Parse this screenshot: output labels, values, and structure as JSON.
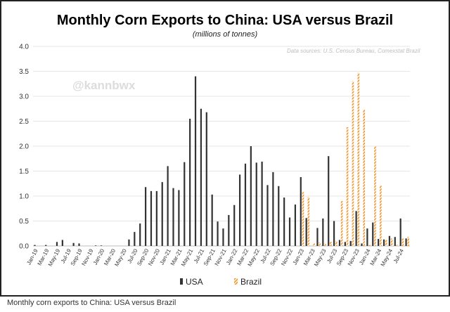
{
  "header": {
    "title": "Monthly Corn Exports to China: USA versus Brazil",
    "subtitle": "(millions of tonnes)",
    "source": "Data sources: U.S. Census Bureau, Comexstat Brazil",
    "watermark": "@kannbwx"
  },
  "caption": "Monthly corn exports to China: USA versus Brazil",
  "colors": {
    "usa": "#333333",
    "brazil": "#f0962e"
  },
  "chart_data": {
    "type": "bar",
    "title": "Monthly Corn Exports to China: USA versus Brazil",
    "subtitle": "(millions of tonnes)",
    "ylim": [
      0,
      4.0
    ],
    "yticks": [
      "0.0",
      "0.5",
      "1.0",
      "1.5",
      "2.0",
      "2.5",
      "3.0",
      "3.5",
      "4.0"
    ],
    "grid": "horizontal",
    "legend": "bottom",
    "categories": [
      "Jan-19",
      "Feb-19",
      "Mar-19",
      "Apr-19",
      "May-19",
      "Jun-19",
      "Jul-19",
      "Aug-19",
      "Sep-19",
      "Oct-19",
      "Nov-19",
      "Dec-19",
      "Jan-20",
      "Feb-20",
      "Mar-20",
      "Apr-20",
      "May-20",
      "Jun-20",
      "Jul-20",
      "Aug-20",
      "Sep-20",
      "Oct-20",
      "Nov-20",
      "Dec-20",
      "Jan-21",
      "Feb-21",
      "Mar-21",
      "Apr-21",
      "May-21",
      "Jun-21",
      "Jul-21",
      "Aug-21",
      "Sep-21",
      "Oct-21",
      "Nov-21",
      "Dec-21",
      "Jan-22",
      "Feb-22",
      "Mar-22",
      "Apr-22",
      "May-22",
      "Jun-22",
      "Jul-22",
      "Aug-22",
      "Sep-22",
      "Oct-22",
      "Nov-22",
      "Dec-22",
      "Jan-23",
      "Feb-23",
      "Mar-23",
      "Apr-23",
      "May-23",
      "Jun-23",
      "Jul-23",
      "Aug-23",
      "Sep-23",
      "Oct-23",
      "Nov-23",
      "Dec-23",
      "Jan-24",
      "Feb-24",
      "Mar-24",
      "Apr-24",
      "May-24",
      "Jun-24",
      "Jul-24",
      "Aug-24"
    ],
    "tick_labels": [
      "Jan-19",
      "Mar-19",
      "May-19",
      "Jul-19",
      "Sep-19",
      "Nov-19",
      "Jan-20",
      "Mar-20",
      "May-20",
      "Jul-20",
      "Sep-20",
      "Nov-20",
      "Jan-21",
      "Mar-21",
      "May-21",
      "Jul-21",
      "Sep-21",
      "Nov-21",
      "Jan-22",
      "Mar-22",
      "May-22",
      "Jul-22",
      "Sep-22",
      "Nov-22",
      "Jan-23",
      "Mar-23",
      "May-23",
      "Jul-23",
      "Sep-23",
      "Nov-23",
      "Jan-24",
      "Mar-24",
      "May-24",
      "Jul-24"
    ],
    "series": [
      {
        "name": "USA",
        "values": [
          0.02,
          0.0,
          0.02,
          0.0,
          0.08,
          0.12,
          0.0,
          0.06,
          0.05,
          0.0,
          0.0,
          0.01,
          0.01,
          0.0,
          0.0,
          0.0,
          0.0,
          0.13,
          0.28,
          0.45,
          1.18,
          1.1,
          1.1,
          1.28,
          1.6,
          1.16,
          1.12,
          1.68,
          2.55,
          3.4,
          2.75,
          2.68,
          1.03,
          0.49,
          0.35,
          0.62,
          0.82,
          1.43,
          1.65,
          2.0,
          1.67,
          1.69,
          1.22,
          1.48,
          1.2,
          0.97,
          0.57,
          0.83,
          1.38,
          0.56,
          0.0,
          0.36,
          0.55,
          1.8,
          0.5,
          0.12,
          0.08,
          0.1,
          0.7,
          0.05,
          0.35,
          0.47,
          0.14,
          0.13,
          0.2,
          0.18,
          0.55,
          0.15
        ]
      },
      {
        "name": "Brazil",
        "values": [
          0,
          0,
          0,
          0,
          0,
          0,
          0,
          0,
          0,
          0,
          0,
          0,
          0,
          0,
          0,
          0,
          0,
          0,
          0,
          0,
          0,
          0,
          0,
          0,
          0,
          0,
          0,
          0,
          0,
          0,
          0,
          0,
          0,
          0,
          0,
          0,
          0,
          0,
          0,
          0,
          0,
          0,
          0,
          0,
          0,
          0,
          0,
          0,
          1.08,
          0.98,
          0.05,
          0.07,
          0.05,
          0.08,
          0.1,
          0.9,
          2.38,
          3.3,
          3.47,
          2.73,
          0.02,
          2.0,
          1.21,
          0.12,
          0.15,
          0.02,
          0.15,
          0.18
        ]
      }
    ]
  }
}
